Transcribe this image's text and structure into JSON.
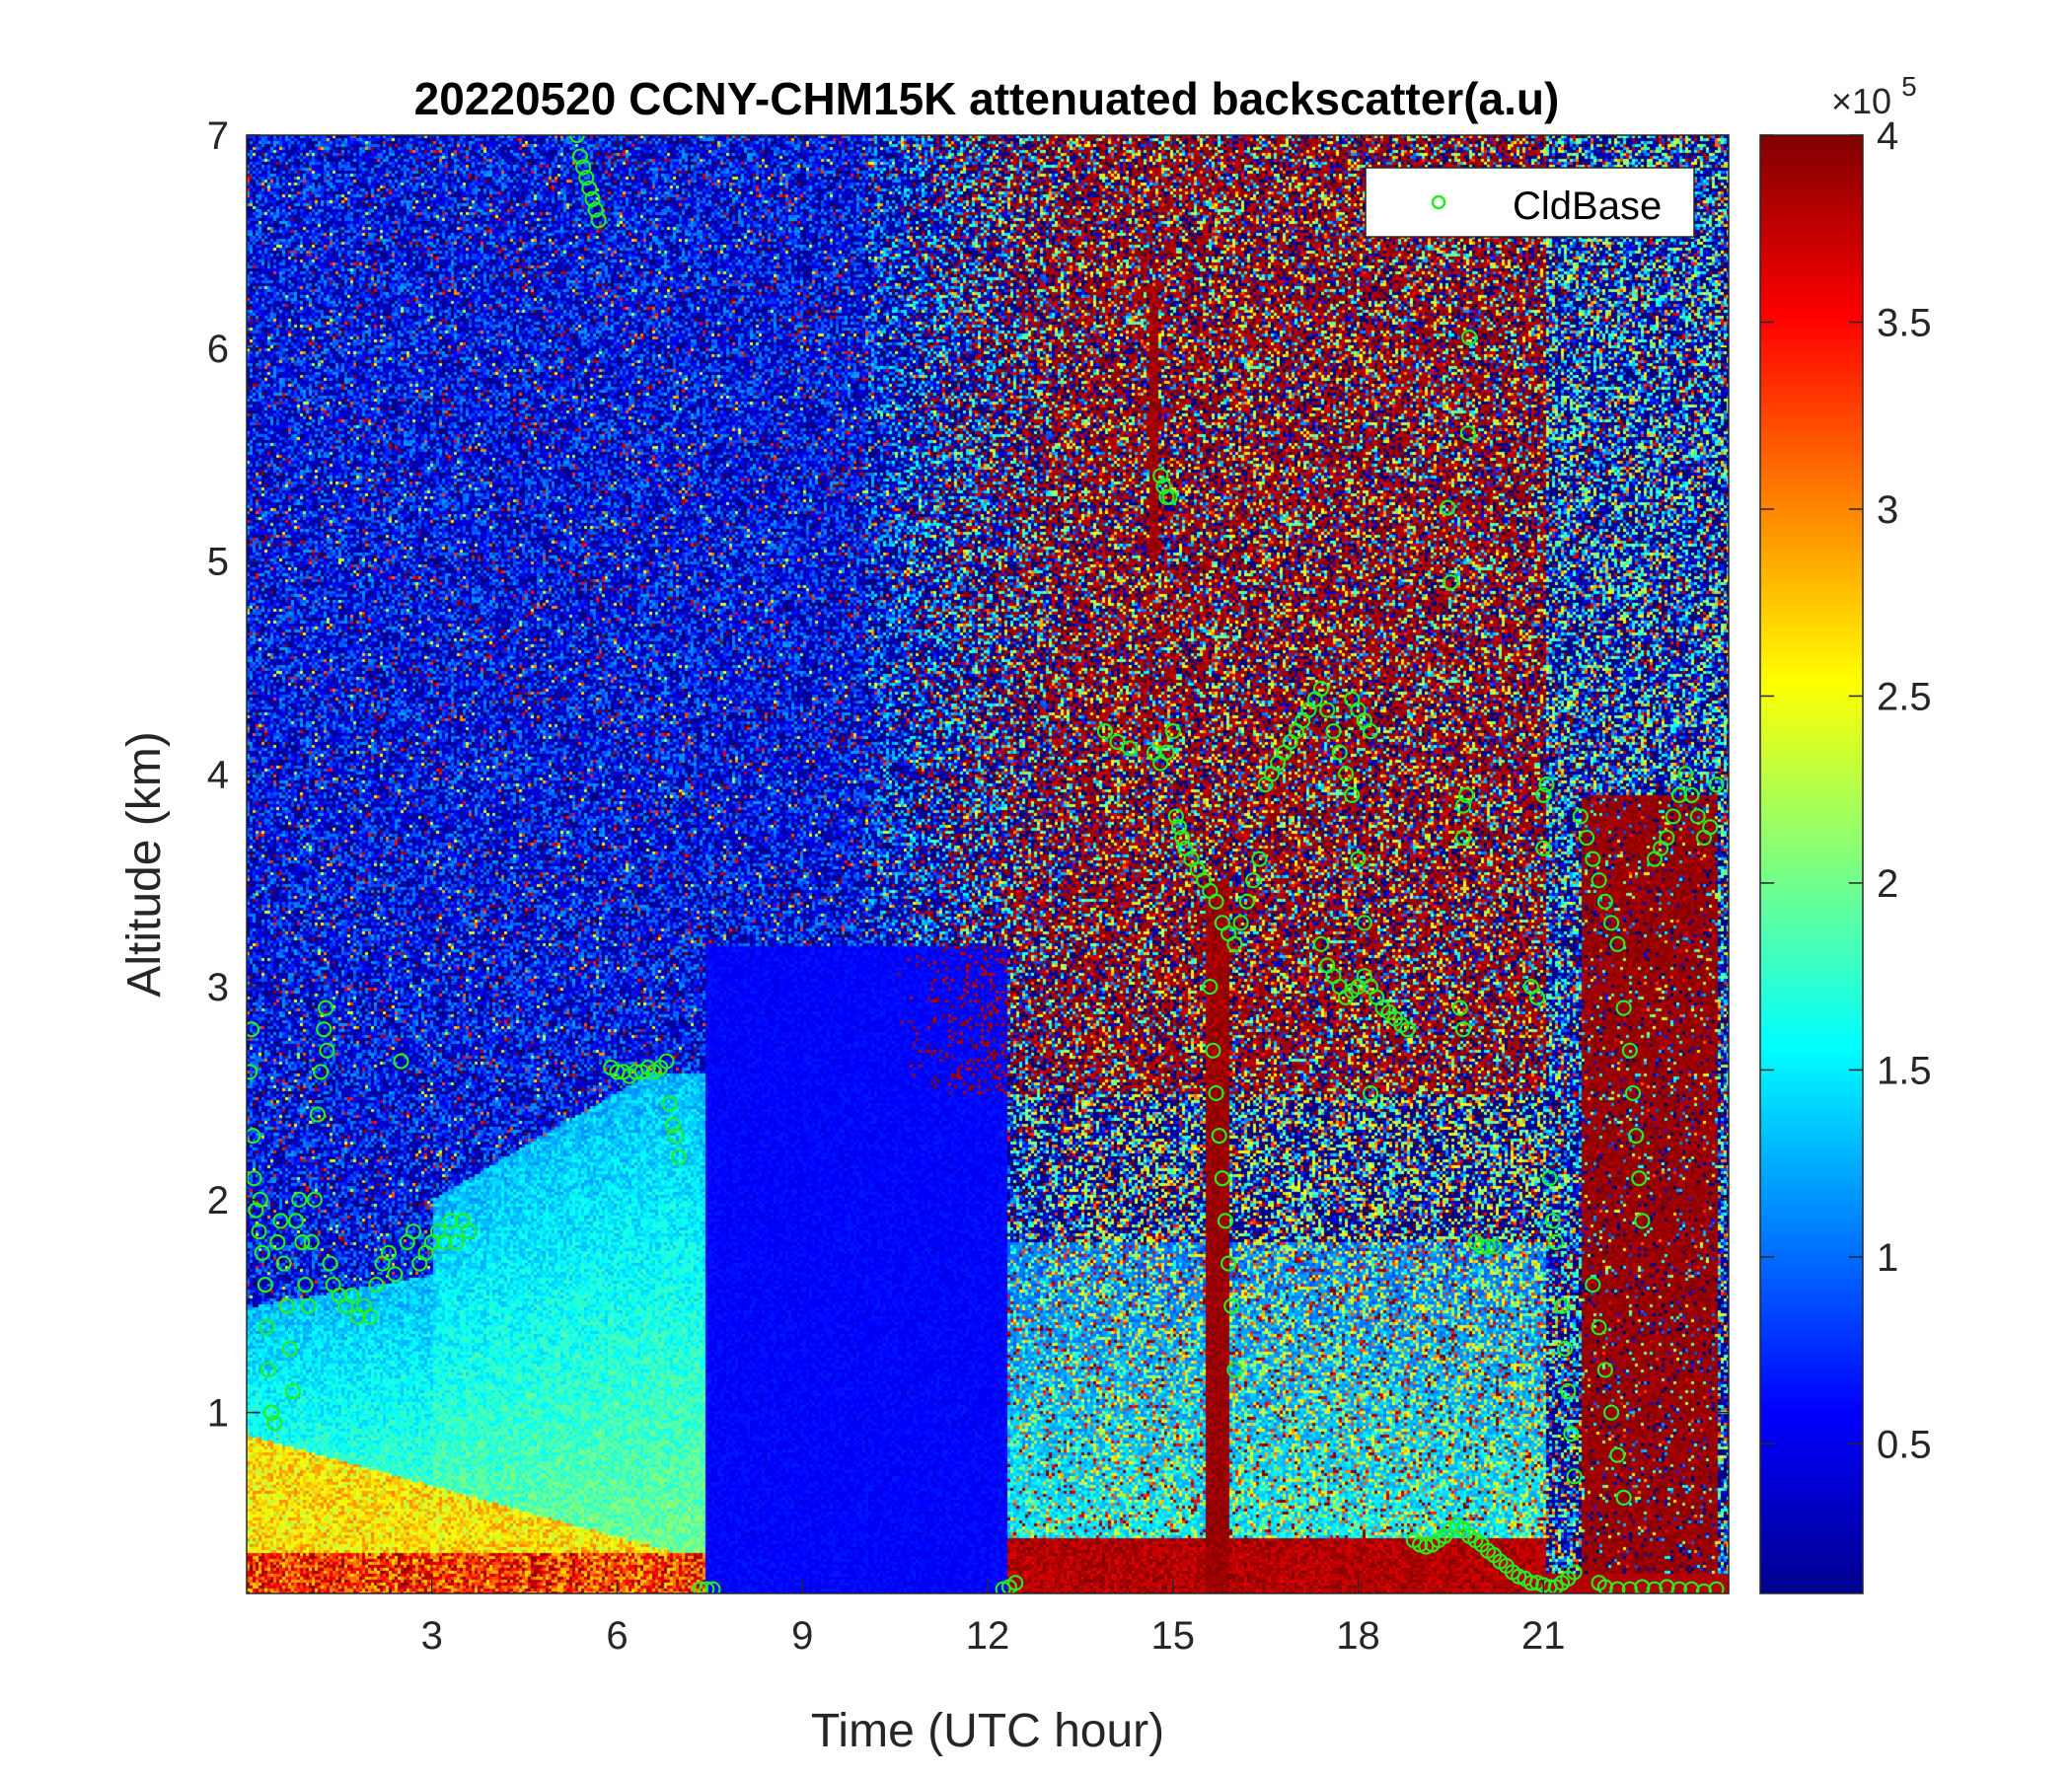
{
  "chart_data": {
    "type": "heatmap",
    "title": "20220520 CCNY-CHM15K attenuated backscatter(a.u)",
    "xlabel": "Time (UTC hour)",
    "ylabel": "Altitude (km)",
    "xlim": [
      0,
      24
    ],
    "ylim": [
      0.15,
      7
    ],
    "x_ticks": [
      3,
      6,
      9,
      12,
      15,
      18,
      21
    ],
    "x_tick_labels": [
      "3",
      "6",
      "9",
      "12",
      "15",
      "18",
      "21"
    ],
    "y_ticks": [
      1,
      2,
      3,
      4,
      5,
      6,
      7
    ],
    "y_tick_labels": [
      "1",
      "2",
      "3",
      "4",
      "5",
      "6",
      "7"
    ],
    "colorbar": {
      "colormap": "jet",
      "range": [
        0.1,
        4
      ],
      "ticks": [
        0.5,
        1,
        1.5,
        2,
        2.5,
        3,
        3.5,
        4
      ],
      "tick_labels": [
        "0.5",
        "1",
        "1.5",
        "2",
        "2.5",
        "3",
        "3.5",
        "4"
      ],
      "multiplier_base": "×10",
      "multiplier_exponent": "5"
    },
    "colors": {
      "cloud_base_marker": "#22ee22",
      "low": "#00008f",
      "high": "#800000"
    },
    "legend": {
      "position": "top-right",
      "entries": [
        "CldBase"
      ]
    },
    "series": [
      {
        "name": "CldBase",
        "type": "scatter",
        "marker": "circle",
        "points": [
          [
            0.05,
            2.6
          ],
          [
            0.08,
            2.8
          ],
          [
            0.1,
            2.3
          ],
          [
            0.12,
            2.1
          ],
          [
            0.15,
            1.95
          ],
          [
            0.2,
            1.85
          ],
          [
            0.22,
            2.0
          ],
          [
            0.25,
            1.75
          ],
          [
            0.3,
            1.6
          ],
          [
            0.32,
            1.4
          ],
          [
            0.35,
            1.2
          ],
          [
            0.4,
            1.0
          ],
          [
            0.45,
            0.95
          ],
          [
            0.5,
            1.8
          ],
          [
            0.55,
            1.9
          ],
          [
            0.6,
            1.7
          ],
          [
            0.65,
            1.5
          ],
          [
            0.7,
            1.3
          ],
          [
            0.75,
            1.1
          ],
          [
            0.8,
            1.9
          ],
          [
            0.85,
            2.0
          ],
          [
            0.9,
            1.8
          ],
          [
            0.95,
            1.6
          ],
          [
            1.0,
            1.5
          ],
          [
            1.05,
            1.8
          ],
          [
            1.1,
            2.0
          ],
          [
            1.15,
            2.4
          ],
          [
            1.2,
            2.6
          ],
          [
            1.25,
            2.8
          ],
          [
            1.28,
            2.9
          ],
          [
            1.3,
            2.7
          ],
          [
            1.35,
            1.7
          ],
          [
            1.4,
            1.6
          ],
          [
            1.5,
            1.55
          ],
          [
            1.6,
            1.5
          ],
          [
            1.7,
            1.55
          ],
          [
            1.8,
            1.45
          ],
          [
            1.9,
            1.5
          ],
          [
            2.0,
            1.45
          ],
          [
            2.1,
            1.6
          ],
          [
            2.2,
            1.7
          ],
          [
            2.3,
            1.75
          ],
          [
            2.4,
            1.65
          ],
          [
            2.5,
            2.65
          ],
          [
            2.6,
            1.8
          ],
          [
            2.7,
            1.85
          ],
          [
            2.8,
            1.7
          ],
          [
            2.9,
            1.75
          ],
          [
            3.0,
            1.8
          ],
          [
            3.1,
            1.85
          ],
          [
            3.2,
            1.8
          ],
          [
            3.3,
            1.9
          ],
          [
            3.4,
            1.8
          ],
          [
            3.5,
            1.9
          ],
          [
            3.6,
            1.85
          ],
          [
            5.35,
            7.0
          ],
          [
            5.4,
            6.9
          ],
          [
            5.45,
            6.85
          ],
          [
            5.5,
            6.8
          ],
          [
            5.55,
            6.75
          ],
          [
            5.6,
            6.7
          ],
          [
            5.65,
            6.65
          ],
          [
            5.7,
            6.6
          ],
          [
            5.9,
            2.62
          ],
          [
            6.0,
            2.6
          ],
          [
            6.1,
            2.6
          ],
          [
            6.2,
            2.58
          ],
          [
            6.3,
            2.6
          ],
          [
            6.4,
            2.6
          ],
          [
            6.5,
            2.62
          ],
          [
            6.6,
            2.6
          ],
          [
            6.7,
            2.62
          ],
          [
            6.8,
            2.65
          ],
          [
            6.85,
            2.45
          ],
          [
            6.9,
            2.35
          ],
          [
            6.95,
            2.3
          ],
          [
            7.0,
            2.2
          ],
          [
            7.35,
            0.17
          ],
          [
            7.45,
            0.17
          ],
          [
            7.55,
            0.17
          ],
          [
            12.25,
            0.17
          ],
          [
            12.35,
            0.18
          ],
          [
            12.45,
            0.2
          ],
          [
            13.9,
            4.2
          ],
          [
            14.1,
            4.15
          ],
          [
            14.3,
            4.12
          ],
          [
            14.8,
            5.4
          ],
          [
            14.85,
            5.35
          ],
          [
            14.9,
            5.3
          ],
          [
            14.95,
            5.3
          ],
          [
            14.7,
            4.1
          ],
          [
            14.8,
            4.05
          ],
          [
            14.9,
            4.1
          ],
          [
            15.0,
            4.2
          ],
          [
            15.05,
            3.8
          ],
          [
            15.1,
            3.75
          ],
          [
            15.15,
            3.7
          ],
          [
            15.2,
            3.65
          ],
          [
            15.3,
            3.6
          ],
          [
            15.4,
            3.55
          ],
          [
            15.5,
            3.5
          ],
          [
            15.6,
            3.45
          ],
          [
            15.7,
            3.4
          ],
          [
            15.8,
            3.3
          ],
          [
            15.9,
            3.25
          ],
          [
            16.0,
            3.2
          ],
          [
            16.1,
            3.3
          ],
          [
            16.2,
            3.4
          ],
          [
            16.3,
            3.5
          ],
          [
            16.4,
            3.6
          ],
          [
            15.6,
            3.0
          ],
          [
            15.65,
            2.7
          ],
          [
            15.7,
            2.5
          ],
          [
            15.75,
            2.3
          ],
          [
            15.8,
            2.1
          ],
          [
            15.85,
            1.9
          ],
          [
            15.9,
            1.7
          ],
          [
            15.95,
            1.5
          ],
          [
            16.0,
            1.2
          ],
          [
            16.5,
            3.95
          ],
          [
            16.6,
            4.0
          ],
          [
            16.7,
            4.05
          ],
          [
            16.8,
            4.1
          ],
          [
            16.9,
            4.15
          ],
          [
            17.0,
            4.2
          ],
          [
            17.1,
            4.25
          ],
          [
            17.2,
            4.3
          ],
          [
            17.3,
            4.35
          ],
          [
            17.4,
            4.4
          ],
          [
            17.5,
            4.3
          ],
          [
            17.6,
            4.2
          ],
          [
            17.7,
            4.1
          ],
          [
            17.8,
            4.0
          ],
          [
            17.9,
            4.35
          ],
          [
            18.0,
            4.3
          ],
          [
            18.1,
            4.25
          ],
          [
            18.2,
            4.2
          ],
          [
            17.4,
            3.2
          ],
          [
            17.5,
            3.1
          ],
          [
            17.6,
            3.05
          ],
          [
            17.7,
            3.0
          ],
          [
            17.8,
            2.95
          ],
          [
            17.9,
            2.98
          ],
          [
            18.0,
            3.0
          ],
          [
            18.1,
            3.05
          ],
          [
            18.2,
            3.0
          ],
          [
            18.3,
            2.95
          ],
          [
            18.4,
            2.9
          ],
          [
            18.5,
            2.88
          ],
          [
            18.6,
            2.85
          ],
          [
            18.7,
            2.82
          ],
          [
            18.8,
            2.8
          ],
          [
            17.9,
            3.9
          ],
          [
            18.0,
            3.6
          ],
          [
            18.1,
            3.3
          ],
          [
            18.2,
            2.5
          ],
          [
            18.9,
            0.4
          ],
          [
            19.0,
            0.38
          ],
          [
            19.1,
            0.37
          ],
          [
            19.2,
            0.38
          ],
          [
            19.3,
            0.4
          ],
          [
            19.4,
            0.42
          ],
          [
            19.5,
            0.45
          ],
          [
            19.6,
            0.47
          ],
          [
            19.7,
            0.45
          ],
          [
            19.8,
            0.42
          ],
          [
            19.9,
            0.4
          ],
          [
            20.0,
            0.38
          ],
          [
            20.1,
            0.35
          ],
          [
            20.2,
            0.33
          ],
          [
            20.3,
            0.3
          ],
          [
            20.4,
            0.28
          ],
          [
            20.5,
            0.25
          ],
          [
            20.6,
            0.23
          ],
          [
            20.7,
            0.22
          ],
          [
            20.8,
            0.2
          ],
          [
            20.9,
            0.2
          ],
          [
            21.0,
            0.19
          ],
          [
            21.1,
            0.18
          ],
          [
            21.2,
            0.18
          ],
          [
            21.3,
            0.2
          ],
          [
            21.4,
            0.22
          ],
          [
            21.5,
            0.25
          ],
          [
            19.45,
            5.25
          ],
          [
            19.5,
            4.9
          ],
          [
            19.7,
            3.85
          ],
          [
            19.75,
            3.9
          ],
          [
            19.8,
            6.05
          ],
          [
            19.78,
            5.6
          ],
          [
            19.7,
            3.7
          ],
          [
            19.65,
            2.9
          ],
          [
            19.7,
            2.8
          ],
          [
            19.9,
            1.8
          ],
          [
            20.0,
            1.78
          ],
          [
            20.1,
            1.78
          ],
          [
            20.2,
            1.78
          ],
          [
            20.8,
            3.0
          ],
          [
            20.9,
            2.95
          ],
          [
            21.0,
            3.9
          ],
          [
            21.05,
            3.95
          ],
          [
            21.0,
            3.65
          ],
          [
            21.1,
            2.1
          ],
          [
            21.15,
            1.9
          ],
          [
            21.2,
            1.8
          ],
          [
            21.3,
            1.5
          ],
          [
            21.35,
            1.3
          ],
          [
            21.4,
            1.1
          ],
          [
            21.45,
            0.9
          ],
          [
            21.5,
            0.7
          ],
          [
            21.6,
            3.8
          ],
          [
            21.7,
            3.7
          ],
          [
            21.8,
            3.6
          ],
          [
            21.9,
            3.5
          ],
          [
            22.0,
            3.4
          ],
          [
            22.1,
            3.3
          ],
          [
            22.2,
            3.2
          ],
          [
            22.3,
            2.9
          ],
          [
            22.4,
            2.7
          ],
          [
            22.45,
            2.5
          ],
          [
            22.5,
            2.3
          ],
          [
            22.55,
            2.1
          ],
          [
            22.6,
            1.9
          ],
          [
            21.8,
            1.6
          ],
          [
            21.9,
            1.4
          ],
          [
            22.0,
            1.2
          ],
          [
            22.1,
            1.0
          ],
          [
            22.2,
            0.8
          ],
          [
            22.3,
            0.6
          ],
          [
            22.8,
            3.6
          ],
          [
            22.9,
            3.65
          ],
          [
            23.0,
            3.7
          ],
          [
            23.1,
            3.8
          ],
          [
            23.2,
            3.9
          ],
          [
            23.3,
            4.0
          ],
          [
            23.4,
            3.9
          ],
          [
            23.5,
            3.8
          ],
          [
            23.6,
            3.7
          ],
          [
            23.7,
            3.75
          ],
          [
            23.8,
            3.95
          ],
          [
            21.9,
            0.2
          ],
          [
            22.0,
            0.18
          ],
          [
            22.2,
            0.17
          ],
          [
            22.4,
            0.17
          ],
          [
            22.6,
            0.18
          ],
          [
            22.8,
            0.17
          ],
          [
            23.0,
            0.18
          ],
          [
            23.2,
            0.17
          ],
          [
            23.4,
            0.17
          ],
          [
            23.6,
            0.16
          ],
          [
            23.8,
            0.17
          ]
        ]
      }
    ]
  }
}
